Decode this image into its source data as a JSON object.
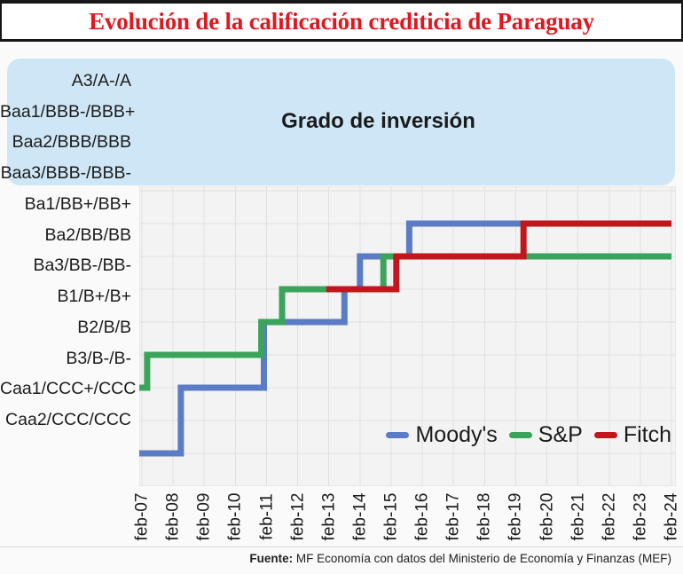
{
  "header": {
    "title": "Evolución de la calificación crediticia de Paraguay",
    "title_color": "#df1820"
  },
  "footer": {
    "source_label": "Fuente:",
    "source_text": " MF Economía con datos del Ministerio de Economía y Finanzas (MEF)"
  },
  "chart_data": {
    "type": "line",
    "subtype": "step",
    "title": "Evolución de la calificación crediticia de Paraguay",
    "grid": true,
    "plot_background": "#f3f3f3",
    "gridline_color": "#e0e0e0",
    "legend_position": "inside-bottom-right",
    "x_tick_labels": [
      "feb-07",
      "feb-08",
      "feb-09",
      "feb-10",
      "feb-11",
      "feb-12",
      "feb-13",
      "feb-14",
      "feb-15",
      "feb-16",
      "feb-17",
      "feb-18",
      "feb-19",
      "feb-20",
      "feb-21",
      "feb-22",
      "feb-23",
      "feb-24"
    ],
    "x_range_months": [
      0,
      204
    ],
    "x_months_per_tick": 12,
    "rating_scale_bottom_to_top": [
      "",
      "Caa2/CCC/CCC",
      "Caa1/CCC+/CCC",
      "B3/B-/B-",
      "B2/B/B",
      "B1/B+/B+",
      "Ba3/BB-/BB-",
      "Ba2/BB/BB",
      "Ba1/BB+/BB+",
      "Baa3/BBB-/BBB-",
      "Baa2/BBB/BBB",
      "Baa1/BBB-/BBB+",
      "A3/A-/A"
    ],
    "y_axis_labels_top_down": [
      "A3/A-/A",
      "Baa1/BBB-/BBB+",
      "Baa2/BBB/BBB",
      "Baa3/BBB-/BBB-",
      "Ba1/BB+/BB+",
      "Ba2/BB/BB",
      "Ba3/BB-/BB-",
      "B1/B+/B+",
      "B2/B/B",
      "B3/B-/B-",
      "Caa1/CCC+/CCC",
      "Caa2/CCC/CCC"
    ],
    "investment_grade_band": {
      "label": "Grado de inversión",
      "levels_covered": [
        "Baa3/BBB-/BBB-",
        "Baa2/BBB/BBB",
        "Baa1/BBB-/BBB+",
        "A3/A-/A"
      ],
      "color": "#cee6f5"
    },
    "series": [
      {
        "name": "Moody's",
        "color": "#5b7cc4",
        "steps": [
          {
            "month": 0,
            "date": "feb-07",
            "level": 0,
            "rating": "(bajo Caa2)"
          },
          {
            "month": 15,
            "date": "may-08",
            "level": 2,
            "rating": "Caa1"
          },
          {
            "month": 47,
            "date": "ene-11",
            "level": 4,
            "rating": "B2"
          },
          {
            "month": 78,
            "date": "ago-13",
            "level": 5,
            "rating": "B1"
          },
          {
            "month": 84,
            "date": "feb-14",
            "level": 6,
            "rating": "Ba3"
          },
          {
            "month": 103,
            "date": "sep-15",
            "level": 7,
            "rating": "Ba2"
          }
        ],
        "end_month": 204
      },
      {
        "name": "S&P",
        "color": "#3aa45a",
        "steps": [
          {
            "month": 0,
            "date": "feb-07",
            "level": 2,
            "rating": "CCC+"
          },
          {
            "month": 2,
            "date": "abr-07",
            "level": 3,
            "rating": "B-"
          },
          {
            "month": 46,
            "date": "dic-10",
            "level": 4,
            "rating": "B"
          },
          {
            "month": 54,
            "date": "ago-11",
            "level": 5,
            "rating": "B+"
          },
          {
            "month": 93,
            "date": "nov-14",
            "level": 6,
            "rating": "BB-"
          }
        ],
        "end_month": 204
      },
      {
        "name": "Fitch",
        "color": "#c0161c",
        "steps": [
          {
            "month": 71,
            "date": "ene-13",
            "level": 5,
            "rating": "B+"
          },
          {
            "month": 98,
            "date": "abr-15",
            "level": 6,
            "rating": "BB-"
          },
          {
            "month": 147,
            "date": "may-19",
            "level": 7,
            "rating": "BB"
          }
        ],
        "end_month": 204
      }
    ]
  }
}
